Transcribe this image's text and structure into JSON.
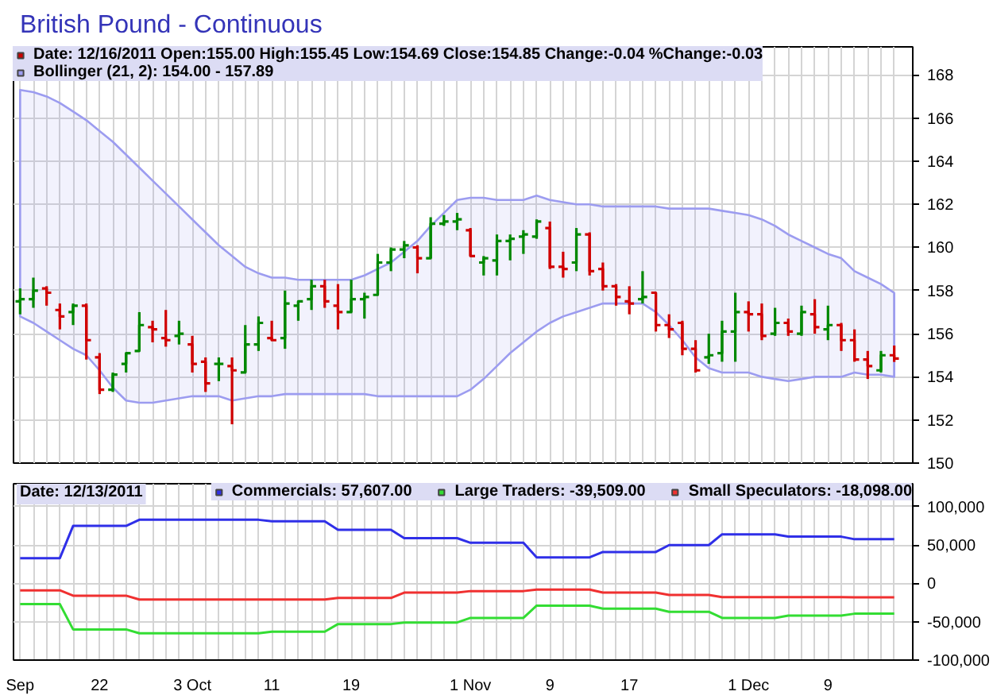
{
  "chart_data": [
    {
      "type": "candlestick",
      "title": "British Pound - Continuous",
      "categories": [
        null,
        null,
        null,
        null,
        null,
        null,
        null,
        null,
        null,
        null,
        null,
        null,
        null,
        null,
        null,
        null,
        null,
        null,
        null,
        null,
        null,
        null,
        null,
        null,
        null,
        null,
        null,
        null,
        null,
        null,
        null,
        null,
        null,
        null,
        null,
        null,
        null,
        null,
        null,
        null,
        null,
        null,
        null,
        null,
        null,
        null,
        null,
        null,
        null,
        null,
        null,
        null,
        null,
        null,
        null,
        null,
        null,
        null,
        null,
        null,
        null,
        null,
        null,
        null,
        null,
        null,
        null
      ],
      "grid": true,
      "legend": "top",
      "ylim": [
        150,
        169.3
      ],
      "yticks": [
        150,
        152,
        154,
        156,
        158,
        160,
        162,
        164,
        166,
        168
      ],
      "series": [
        {
          "type": "candlestick",
          "name": "Date: 12/16/2011 Open:155.00 High:155.45 Low:154.69 Close:154.85 Change:-0.04 %Change:-0.03",
          "color": "#cc0000",
          "ohlc": [
            [
              157.5,
              158.1,
              156.9,
              157.6
            ],
            [
              157.6,
              158.6,
              157.2,
              158.0
            ],
            [
              158.1,
              158.2,
              157.3,
              157.9
            ],
            [
              157.1,
              157.4,
              156.2,
              156.8
            ],
            [
              157.0,
              157.4,
              156.4,
              157.3
            ],
            [
              157.3,
              157.4,
              154.8,
              155.7
            ],
            [
              154.9,
              155.1,
              153.2,
              153.4
            ],
            [
              153.4,
              154.2,
              153.3,
              154.1
            ],
            [
              154.6,
              155.1,
              154.2,
              155.1
            ],
            [
              155.2,
              157.0,
              155.2,
              156.4
            ],
            [
              156.3,
              156.6,
              155.6,
              156.2
            ],
            [
              155.8,
              157.1,
              155.4,
              155.7
            ],
            [
              155.9,
              156.6,
              155.5,
              156.0
            ],
            [
              155.5,
              155.9,
              154.2,
              154.6
            ],
            [
              154.7,
              154.9,
              153.3,
              153.7
            ],
            [
              154.6,
              154.9,
              153.8,
              154.6
            ],
            [
              154.5,
              154.9,
              151.8,
              154.3
            ],
            [
              154.2,
              156.4,
              154.2,
              155.5
            ],
            [
              155.5,
              156.8,
              155.2,
              156.5
            ],
            [
              155.8,
              156.6,
              155.7,
              155.7
            ],
            [
              155.8,
              158.0,
              155.3,
              157.4
            ],
            [
              157.3,
              157.5,
              156.6,
              157.5
            ],
            [
              157.6,
              158.5,
              157.1,
              158.2
            ],
            [
              158.2,
              158.5,
              157.2,
              157.5
            ],
            [
              157.3,
              158.3,
              156.2,
              157.0
            ],
            [
              157.0,
              158.5,
              157.0,
              157.6
            ],
            [
              157.6,
              157.9,
              156.7,
              157.7
            ],
            [
              157.8,
              159.7,
              157.8,
              159.3
            ],
            [
              159.3,
              160.0,
              158.9,
              159.9
            ],
            [
              159.9,
              160.3,
              159.5,
              160.1
            ],
            [
              160.0,
              160.1,
              158.8,
              159.5
            ],
            [
              159.5,
              161.4,
              159.5,
              161.1
            ],
            [
              161.1,
              161.5,
              161.0,
              161.2
            ],
            [
              161.2,
              161.6,
              160.8,
              161.3
            ],
            [
              160.8,
              160.9,
              159.6,
              159.6
            ],
            [
              159.3,
              159.6,
              158.7,
              159.5
            ],
            [
              159.4,
              160.6,
              158.7,
              160.3
            ],
            [
              160.3,
              160.6,
              159.4,
              160.4
            ],
            [
              160.5,
              160.8,
              159.7,
              160.6
            ],
            [
              160.5,
              161.3,
              160.4,
              161.2
            ],
            [
              160.9,
              161.2,
              159.0,
              159.1
            ],
            [
              159.1,
              159.8,
              158.6,
              159.0
            ],
            [
              159.3,
              160.9,
              158.9,
              160.6
            ],
            [
              160.6,
              160.7,
              158.7,
              158.9
            ],
            [
              159.0,
              159.3,
              158.0,
              158.2
            ],
            [
              158.2,
              158.3,
              157.3,
              157.7
            ],
            [
              157.5,
              158.2,
              156.9,
              157.4
            ],
            [
              157.6,
              158.9,
              157.4,
              157.7
            ],
            [
              157.9,
              157.9,
              156.1,
              156.4
            ],
            [
              156.4,
              156.9,
              155.8,
              156.2
            ],
            [
              156.5,
              156.6,
              155.0,
              155.3
            ],
            [
              155.3,
              155.7,
              154.2,
              154.3
            ],
            [
              154.9,
              156.0,
              154.6,
              155.0
            ],
            [
              155.1,
              156.6,
              154.7,
              156.1
            ],
            [
              156.1,
              157.9,
              154.7,
              157.0
            ],
            [
              157.0,
              157.5,
              156.1,
              156.9
            ],
            [
              156.9,
              157.4,
              155.7,
              155.9
            ],
            [
              156.0,
              157.2,
              155.9,
              156.5
            ],
            [
              156.5,
              156.7,
              155.9,
              156.1
            ],
            [
              156.0,
              157.3,
              155.9,
              157.0
            ],
            [
              156.9,
              157.6,
              156.0,
              156.3
            ],
            [
              156.2,
              157.3,
              155.7,
              156.4
            ],
            [
              156.4,
              156.5,
              155.2,
              155.7
            ],
            [
              155.7,
              156.2,
              154.7,
              154.8
            ],
            [
              154.8,
              155.2,
              153.9,
              154.5
            ],
            [
              154.3,
              155.2,
              154.2,
              155.0
            ],
            [
              155.0,
              155.45,
              154.69,
              154.85
            ]
          ],
          "colors": [
            "#008800",
            "#008800",
            "#d00000",
            "#d00000",
            "#008800",
            "#d00000",
            "#d00000",
            "#008800",
            "#008800",
            "#008800",
            "#d00000",
            "#d00000",
            "#008800",
            "#d00000",
            "#d00000",
            "#008800",
            "#d00000",
            "#008800",
            "#008800",
            "#d00000",
            "#008800",
            "#008800",
            "#008800",
            "#d00000",
            "#d00000",
            "#008800",
            "#008800",
            "#008800",
            "#008800",
            "#008800",
            "#d00000",
            "#008800",
            "#008800",
            "#008800",
            "#d00000",
            "#008800",
            "#008800",
            "#008800",
            "#008800",
            "#008800",
            "#d00000",
            "#d00000",
            "#008800",
            "#d00000",
            "#d00000",
            "#d00000",
            "#d00000",
            "#008800",
            "#d00000",
            "#d00000",
            "#d00000",
            "#d00000",
            "#008800",
            "#008800",
            "#008800",
            "#d00000",
            "#d00000",
            "#008800",
            "#d00000",
            "#008800",
            "#d00000",
            "#008800",
            "#d00000",
            "#d00000",
            "#d00000",
            "#008800",
            "#d00000"
          ]
        },
        {
          "type": "line",
          "name": "Bollinger (21, 2): 154.00 - 157.89",
          "color": "#9c9cf0",
          "values": [
            null,
            null,
            null,
            null,
            null,
            null,
            null,
            null,
            null,
            null,
            null,
            null,
            null,
            null,
            null,
            null,
            null,
            null,
            null,
            null,
            null,
            null,
            null,
            null,
            null,
            null,
            null,
            null,
            null,
            null,
            null,
            null,
            null,
            null,
            null,
            null,
            null,
            null,
            null,
            null,
            null,
            null,
            null,
            null,
            null,
            null,
            null,
            null,
            null,
            null,
            null,
            null,
            null,
            null,
            null,
            null,
            null,
            null,
            null,
            null,
            null,
            null,
            null,
            null,
            null,
            null,
            null
          ],
          "upper": [
            167.3,
            167.2,
            167.0,
            166.7,
            166.3,
            165.9,
            165.4,
            164.9,
            164.3,
            163.7,
            163.1,
            162.5,
            161.9,
            161.3,
            160.7,
            160.1,
            159.6,
            159.1,
            158.8,
            158.6,
            158.6,
            158.5,
            158.5,
            158.5,
            158.5,
            158.5,
            158.7,
            159.0,
            159.3,
            159.8,
            160.3,
            161.0,
            161.6,
            162.2,
            162.3,
            162.3,
            162.2,
            162.2,
            162.2,
            162.4,
            162.2,
            162.1,
            162.0,
            162.0,
            161.9,
            161.9,
            161.9,
            161.9,
            161.9,
            161.8,
            161.8,
            161.8,
            161.8,
            161.7,
            161.6,
            161.5,
            161.3,
            161.0,
            160.6,
            160.3,
            160.0,
            159.7,
            159.5,
            158.9,
            158.6,
            158.3,
            157.89
          ],
          "lower": [
            156.8,
            156.5,
            156.1,
            155.7,
            155.3,
            155.0,
            154.3,
            153.5,
            152.9,
            152.8,
            152.8,
            152.9,
            153.0,
            153.1,
            153.1,
            153.1,
            152.9,
            153.0,
            153.1,
            153.1,
            153.2,
            153.2,
            153.2,
            153.2,
            153.2,
            153.2,
            153.2,
            153.1,
            153.1,
            153.1,
            153.1,
            153.1,
            153.1,
            153.1,
            153.4,
            153.9,
            154.5,
            155.1,
            155.6,
            156.1,
            156.5,
            156.8,
            157.0,
            157.2,
            157.4,
            157.4,
            157.4,
            157.4,
            157.0,
            156.4,
            155.7,
            154.9,
            154.4,
            154.2,
            154.2,
            154.2,
            154.0,
            153.9,
            153.8,
            153.9,
            154.0,
            154.0,
            154.0,
            154.2,
            154.1,
            154.1,
            154.0
          ]
        }
      ]
    },
    {
      "type": "line",
      "legend_title": "Date: 12/13/2011",
      "categories": [
        "Sep",
        null,
        null,
        null,
        null,
        null,
        "22",
        null,
        null,
        null,
        null,
        null,
        null,
        "3 Oct",
        null,
        null,
        null,
        null,
        null,
        "11",
        null,
        null,
        null,
        null,
        null,
        "19",
        null,
        null,
        null,
        null,
        null,
        null,
        null,
        null,
        "1 Nov",
        null,
        null,
        null,
        null,
        null,
        "9",
        null,
        null,
        null,
        null,
        null,
        "17",
        null,
        null,
        null,
        null,
        null,
        null,
        null,
        null,
        "1 Dec",
        null,
        null,
        null,
        null,
        null,
        "9",
        null,
        null,
        null,
        null,
        null
      ],
      "grid": true,
      "legend": "top",
      "ylim": [
        -100000,
        130000
      ],
      "yticks": [
        {
          "value": -100000,
          "label": "-100,000"
        },
        {
          "value": -50000,
          "label": "-50,000"
        },
        0,
        {
          "value": 50000,
          "label": "50,000"
        },
        {
          "value": 100000,
          "label": "100,000"
        }
      ],
      "series": [
        {
          "name": "Commercials: 57,607.00",
          "color": "#2f2fe8",
          "values": [
            33000,
            33000,
            33000,
            33000,
            75000,
            75000,
            75000,
            75000,
            75000,
            83000,
            83000,
            83000,
            83000,
            83000,
            83000,
            83000,
            83000,
            83000,
            83000,
            81000,
            81000,
            81000,
            81000,
            81000,
            70000,
            70000,
            70000,
            70000,
            70000,
            59000,
            59000,
            59000,
            59000,
            59000,
            53000,
            53000,
            53000,
            53000,
            53000,
            34000,
            34000,
            34000,
            34000,
            34000,
            41000,
            41000,
            41000,
            41000,
            41000,
            50000,
            50000,
            50000,
            50000,
            64000,
            64000,
            64000,
            64000,
            64000,
            61000,
            61000,
            61000,
            61000,
            61000,
            57607,
            57607,
            57607,
            57607
          ]
        },
        {
          "name": "Large Traders: -39,509.00",
          "color": "#33dd33",
          "values": [
            -27000,
            -27000,
            -27000,
            -27000,
            -60000,
            -60000,
            -60000,
            -60000,
            -60000,
            -65000,
            -65000,
            -65000,
            -65000,
            -65000,
            -65000,
            -65000,
            -65000,
            -65000,
            -65000,
            -63000,
            -63000,
            -63000,
            -63000,
            -63000,
            -53000,
            -53000,
            -53000,
            -53000,
            -53000,
            -51000,
            -51000,
            -51000,
            -51000,
            -51000,
            -45000,
            -45000,
            -45000,
            -45000,
            -45000,
            -29000,
            -29000,
            -29000,
            -29000,
            -29000,
            -33000,
            -33000,
            -33000,
            -33000,
            -33000,
            -37000,
            -37000,
            -37000,
            -37000,
            -45000,
            -45000,
            -45000,
            -45000,
            -45000,
            -42000,
            -42000,
            -42000,
            -42000,
            -42000,
            -39509,
            -39509,
            -39509,
            -39509
          ]
        },
        {
          "name": "Small Speculators: -18,098.00",
          "color": "#f03030",
          "values": [
            -9000,
            -9000,
            -9000,
            -9000,
            -16000,
            -16000,
            -16000,
            -16000,
            -16000,
            -21000,
            -21000,
            -21000,
            -21000,
            -21000,
            -21000,
            -21000,
            -21000,
            -21000,
            -21000,
            -21000,
            -21000,
            -21000,
            -21000,
            -21000,
            -19000,
            -19000,
            -19000,
            -19000,
            -19000,
            -12000,
            -12000,
            -12000,
            -12000,
            -12000,
            -10000,
            -10000,
            -10000,
            -10000,
            -10000,
            -8000,
            -8000,
            -8000,
            -8000,
            -8000,
            -12000,
            -12000,
            -12000,
            -12000,
            -12000,
            -15000,
            -15000,
            -15000,
            -15000,
            -18000,
            -18000,
            -18000,
            -18000,
            -18000,
            -18000,
            -18000,
            -18000,
            -18000,
            -18000,
            -18098,
            -18098,
            -18098,
            -18098
          ]
        }
      ]
    }
  ]
}
